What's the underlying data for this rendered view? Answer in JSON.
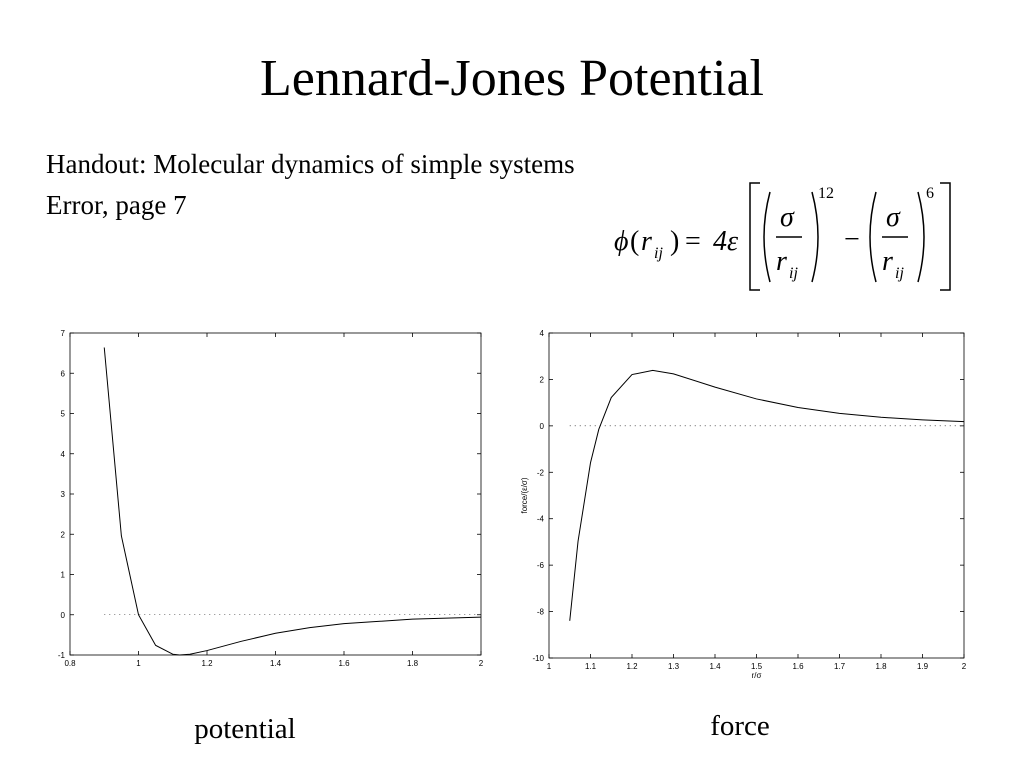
{
  "title": "Lennard-Jones Potential",
  "handout": [
    "Handout: Molecular dynamics of simple systems",
    "Error, page 7"
  ],
  "formula": {
    "phi": "ϕ",
    "open": "(",
    "r": "r",
    "sub": "ij",
    "close": ")",
    "eq": "=",
    "coef": "4ε",
    "sigma": "σ",
    "exp1": "12",
    "minus": "−",
    "exp2": "6"
  },
  "captions": [
    "potential",
    "force"
  ],
  "chart_data": [
    {
      "type": "line",
      "color": "#000000",
      "x": [
        0.9,
        0.95,
        1,
        1.05,
        1.1,
        1.12,
        1.15,
        1.2,
        1.3,
        1.4,
        1.5,
        1.6,
        1.8,
        2
      ],
      "values": [
        6.64,
        1.96,
        0,
        -0.76,
        -0.98,
        -1.0,
        -0.98,
        -0.89,
        -0.66,
        -0.46,
        -0.32,
        -0.22,
        -0.11,
        -0.06
      ],
      "xlim": [
        0.8,
        2
      ],
      "xticks": [
        0.8,
        1,
        1.2,
        1.4,
        1.6,
        1.8,
        2
      ],
      "ylim": [
        -1,
        7
      ],
      "yticks": [
        -1,
        0,
        1,
        2,
        3,
        4,
        5,
        6,
        7
      ],
      "zero_line": 0
    },
    {
      "type": "line",
      "color": "#000000",
      "xlabel": "r/σ",
      "ylabel": "force/(ε/σ)",
      "x": [
        1.05,
        1.07,
        1.1,
        1.12,
        1.15,
        1.2,
        1.25,
        1.3,
        1.4,
        1.5,
        1.6,
        1.7,
        1.8,
        1.9,
        2
      ],
      "values": [
        -8.4,
        -4.97,
        -1.59,
        -0.15,
        1.22,
        2.21,
        2.39,
        2.24,
        1.67,
        1.16,
        0.79,
        0.54,
        0.37,
        0.26,
        0.18
      ],
      "xlim": [
        1,
        2
      ],
      "xticks": [
        1,
        1.1,
        1.2,
        1.3,
        1.4,
        1.5,
        1.6,
        1.7,
        1.8,
        1.9,
        2
      ],
      "ylim": [
        -10,
        4
      ],
      "yticks": [
        -10,
        -8,
        -6,
        -4,
        -2,
        0,
        2,
        4
      ],
      "zero_line": 0
    }
  ]
}
